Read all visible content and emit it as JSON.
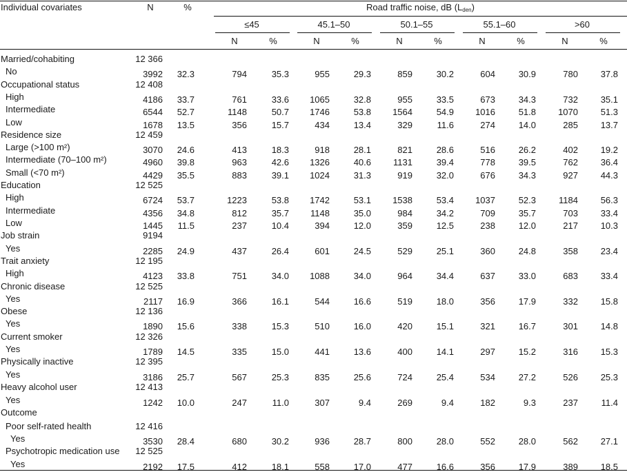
{
  "header": {
    "covariates": "Individual covariates",
    "n": "N",
    "pct": "%",
    "noise_title": "Road traffic noise, dB (L",
    "noise_sub": "den",
    "noise_close": ")",
    "bands": [
      "≤45",
      "45.1–50",
      "50.1–55",
      "55.1–60",
      ">60"
    ],
    "band_n": "N",
    "band_pct": "%"
  },
  "rows": [
    {
      "label": "Married/cohabiting",
      "indent": 0,
      "n": "12 366",
      "pct": "",
      "vals": []
    },
    {
      "label": "No",
      "indent": 1,
      "n": "3992",
      "pct": "32.3",
      "vals": [
        "794",
        "35.3",
        "955",
        "29.3",
        "859",
        "30.2",
        "604",
        "30.9",
        "780",
        "37.8"
      ]
    },
    {
      "label": "Occupational status",
      "indent": 0,
      "n": "12 408",
      "pct": "",
      "vals": []
    },
    {
      "label": "High",
      "indent": 1,
      "n": "4186",
      "pct": "33.7",
      "vals": [
        "761",
        "33.6",
        "1065",
        "32.8",
        "955",
        "33.5",
        "673",
        "34.3",
        "732",
        "35.1"
      ]
    },
    {
      "label": "Intermediate",
      "indent": 1,
      "n": "6544",
      "pct": "52.7",
      "vals": [
        "1148",
        "50.7",
        "1746",
        "53.8",
        "1564",
        "54.9",
        "1016",
        "51.8",
        "1070",
        "51.3"
      ]
    },
    {
      "label": "Low",
      "indent": 1,
      "n": "1678",
      "pct": "13.5",
      "vals": [
        "356",
        "15.7",
        "434",
        "13.4",
        "329",
        "11.6",
        "274",
        "14.0",
        "285",
        "13.7"
      ]
    },
    {
      "label": "Residence size",
      "indent": 0,
      "n": "12 459",
      "pct": "",
      "vals": []
    },
    {
      "label": "Large (>100 m²)",
      "indent": 1,
      "n": "3070",
      "pct": "24.6",
      "vals": [
        "413",
        "18.3",
        "918",
        "28.1",
        "821",
        "28.6",
        "516",
        "26.2",
        "402",
        "19.2"
      ]
    },
    {
      "label": "Intermediate (70–100 m²)",
      "indent": 1,
      "n": "4960",
      "pct": "39.8",
      "vals": [
        "963",
        "42.6",
        "1326",
        "40.6",
        "1131",
        "39.4",
        "778",
        "39.5",
        "762",
        "36.4"
      ]
    },
    {
      "label": "Small (<70 m²)",
      "indent": 1,
      "n": "4429",
      "pct": "35.5",
      "vals": [
        "883",
        "39.1",
        "1024",
        "31.3",
        "919",
        "32.0",
        "676",
        "34.3",
        "927",
        "44.3"
      ]
    },
    {
      "label": "Education",
      "indent": 0,
      "n": "12 525",
      "pct": "",
      "vals": []
    },
    {
      "label": "High",
      "indent": 1,
      "n": "6724",
      "pct": "53.7",
      "vals": [
        "1223",
        "53.8",
        "1742",
        "53.1",
        "1538",
        "53.4",
        "1037",
        "52.3",
        "1184",
        "56.3"
      ]
    },
    {
      "label": "Intermediate",
      "indent": 1,
      "n": "4356",
      "pct": "34.8",
      "vals": [
        "812",
        "35.7",
        "1148",
        "35.0",
        "984",
        "34.2",
        "709",
        "35.7",
        "703",
        "33.4"
      ]
    },
    {
      "label": "Low",
      "indent": 1,
      "n": "1445",
      "pct": "11.5",
      "vals": [
        "237",
        "10.4",
        "394",
        "12.0",
        "359",
        "12.5",
        "238",
        "12.0",
        "217",
        "10.3"
      ]
    },
    {
      "label": "Job strain",
      "indent": 0,
      "n": "9194",
      "pct": "",
      "vals": []
    },
    {
      "label": "Yes",
      "indent": 1,
      "n": "2285",
      "pct": "24.9",
      "vals": [
        "437",
        "26.4",
        "601",
        "24.5",
        "529",
        "25.1",
        "360",
        "24.8",
        "358",
        "23.4"
      ]
    },
    {
      "label": "Trait anxiety",
      "indent": 0,
      "n": "12 195",
      "pct": "",
      "vals": []
    },
    {
      "label": "High",
      "indent": 1,
      "n": "4123",
      "pct": "33.8",
      "vals": [
        "751",
        "34.0",
        "1088",
        "34.0",
        "964",
        "34.4",
        "637",
        "33.0",
        "683",
        "33.4"
      ]
    },
    {
      "label": "Chronic disease",
      "indent": 0,
      "n": "12 525",
      "pct": "",
      "vals": []
    },
    {
      "label": "Yes",
      "indent": 1,
      "n": "2117",
      "pct": "16.9",
      "vals": [
        "366",
        "16.1",
        "544",
        "16.6",
        "519",
        "18.0",
        "356",
        "17.9",
        "332",
        "15.8"
      ]
    },
    {
      "label": "Obese",
      "indent": 0,
      "n": "12 136",
      "pct": "",
      "vals": []
    },
    {
      "label": "Yes",
      "indent": 1,
      "n": "1890",
      "pct": "15.6",
      "vals": [
        "338",
        "15.3",
        "510",
        "16.0",
        "420",
        "15.1",
        "321",
        "16.7",
        "301",
        "14.8"
      ]
    },
    {
      "label": "Current smoker",
      "indent": 0,
      "n": "12 326",
      "pct": "",
      "vals": []
    },
    {
      "label": "Yes",
      "indent": 1,
      "n": "1789",
      "pct": "14.5",
      "vals": [
        "335",
        "15.0",
        "441",
        "13.6",
        "400",
        "14.1",
        "297",
        "15.2",
        "316",
        "15.3"
      ]
    },
    {
      "label": "Physically inactive",
      "indent": 0,
      "n": "12 395",
      "pct": "",
      "vals": []
    },
    {
      "label": "Yes",
      "indent": 1,
      "n": "3186",
      "pct": "25.7",
      "vals": [
        "567",
        "25.3",
        "835",
        "25.6",
        "724",
        "25.4",
        "534",
        "27.2",
        "526",
        "25.3"
      ]
    },
    {
      "label": "Heavy alcohol user",
      "indent": 0,
      "n": "12 413",
      "pct": "",
      "vals": []
    },
    {
      "label": "Yes",
      "indent": 1,
      "n": "1242",
      "pct": "10.0",
      "vals": [
        "247",
        "11.0",
        "307",
        "9.4",
        "269",
        "9.4",
        "182",
        "9.3",
        "237",
        "11.4"
      ]
    },
    {
      "label": "Outcome",
      "indent": 0,
      "n": "",
      "pct": "",
      "vals": []
    },
    {
      "label": "Poor self-rated health",
      "indent": 1,
      "n": "12 416",
      "pct": "",
      "vals": []
    },
    {
      "label": "Yes",
      "indent": 2,
      "n": "3530",
      "pct": "28.4",
      "vals": [
        "680",
        "30.2",
        "936",
        "28.7",
        "800",
        "28.0",
        "552",
        "28.0",
        "562",
        "27.1"
      ]
    },
    {
      "label": "Psychotropic medication use",
      "indent": 1,
      "n": "12 525",
      "pct": "",
      "vals": []
    },
    {
      "label": "Yes",
      "indent": 2,
      "n": "2192",
      "pct": "17.5",
      "vals": [
        "412",
        "18.1",
        "558",
        "17.0",
        "477",
        "16.6",
        "356",
        "17.9",
        "389",
        "18.5"
      ]
    }
  ]
}
